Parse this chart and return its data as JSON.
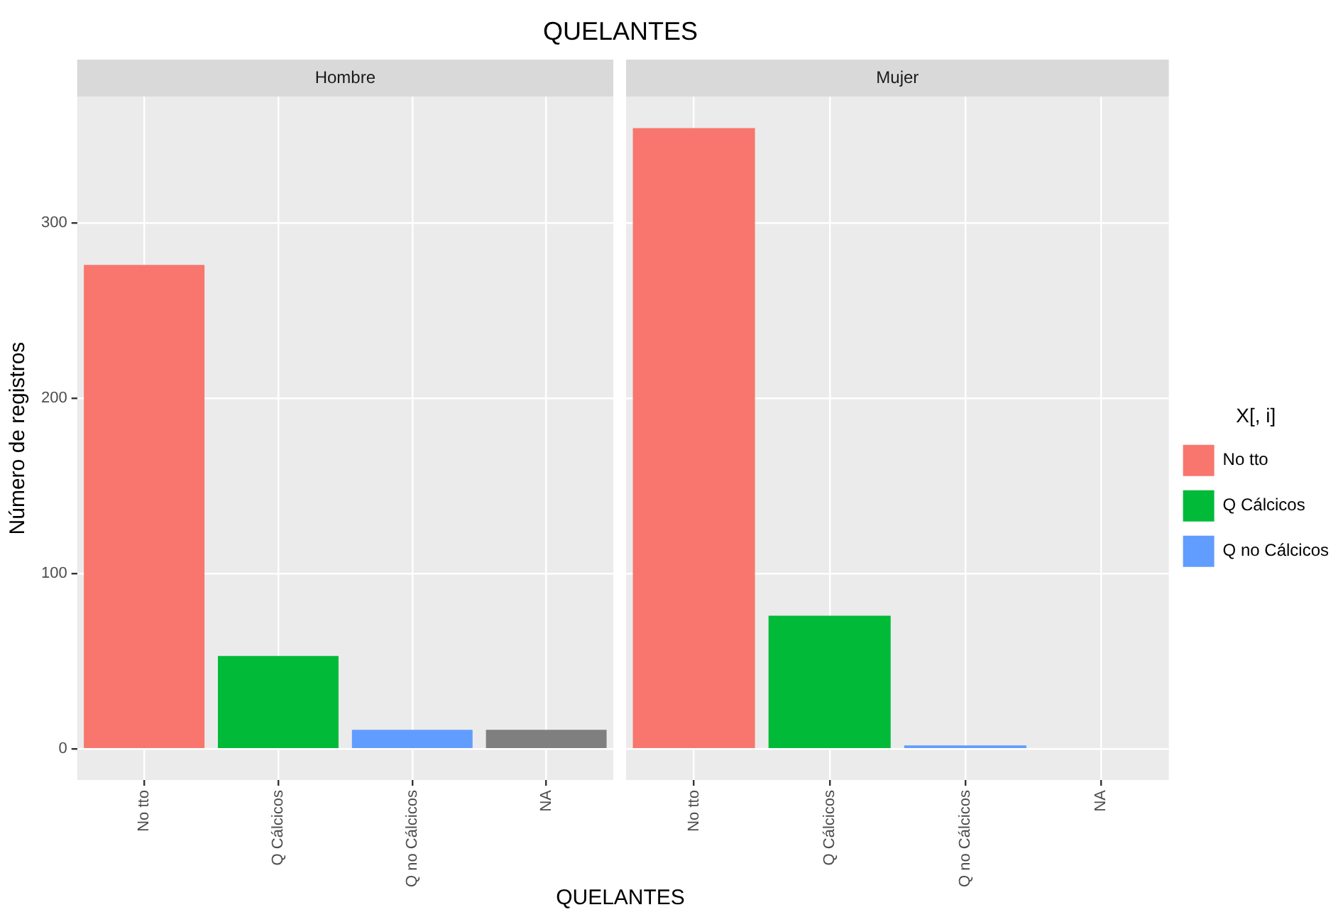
{
  "chart_data": [
    {
      "type": "bar",
      "title": "QUELANTES",
      "subtitle": "Hombre",
      "xlabel": "QUELANTES",
      "ylabel": "Número de registros",
      "categories": [
        "No tto",
        "Q Cálcicos",
        "Q no Cálcicos",
        "NA"
      ],
      "stacked": true,
      "series": [
        {
          "color": "#f8766d",
          "values": [
            276,
            null,
            null,
            null
          ]
        },
        {
          "color": "#00ba38",
          "values": [
            null,
            53,
            null,
            null
          ]
        },
        {
          "color": "#619cff",
          "values": [
            null,
            null,
            11,
            null
          ]
        },
        {
          "color": "#7f7f7f",
          "values": [
            null,
            null,
            null,
            11
          ]
        }
      ],
      "ylim": [
        -17.7,
        372
      ],
      "yticks": [
        0,
        100,
        200,
        300
      ],
      "grid": true,
      "legend": false
    },
    {
      "type": "bar",
      "subtitle": "Mujer",
      "legend_title": "X[, i]",
      "categories": [
        "No tto",
        "Q Cálcicos",
        "Q no Cálcicos",
        "NA"
      ],
      "stacked": true,
      "series": [
        {
          "name": "No tto",
          "color": "#f8766d",
          "values": [
            354,
            null,
            null,
            null
          ]
        },
        {
          "name": "Q Cálcicos",
          "color": "#00ba38",
          "values": [
            null,
            76,
            null,
            null
          ]
        },
        {
          "name": "Q no Cálcicos",
          "color": "#619cff",
          "values": [
            null,
            null,
            2,
            null
          ]
        },
        {
          "color": "#7f7f7f",
          "values": [
            null,
            null,
            null,
            0
          ]
        }
      ],
      "ylim": [
        -17.7,
        372
      ],
      "yticks": [
        0,
        100,
        200,
        300
      ],
      "grid": true,
      "legend": "right",
      "tick_labels": "x"
    }
  ]
}
